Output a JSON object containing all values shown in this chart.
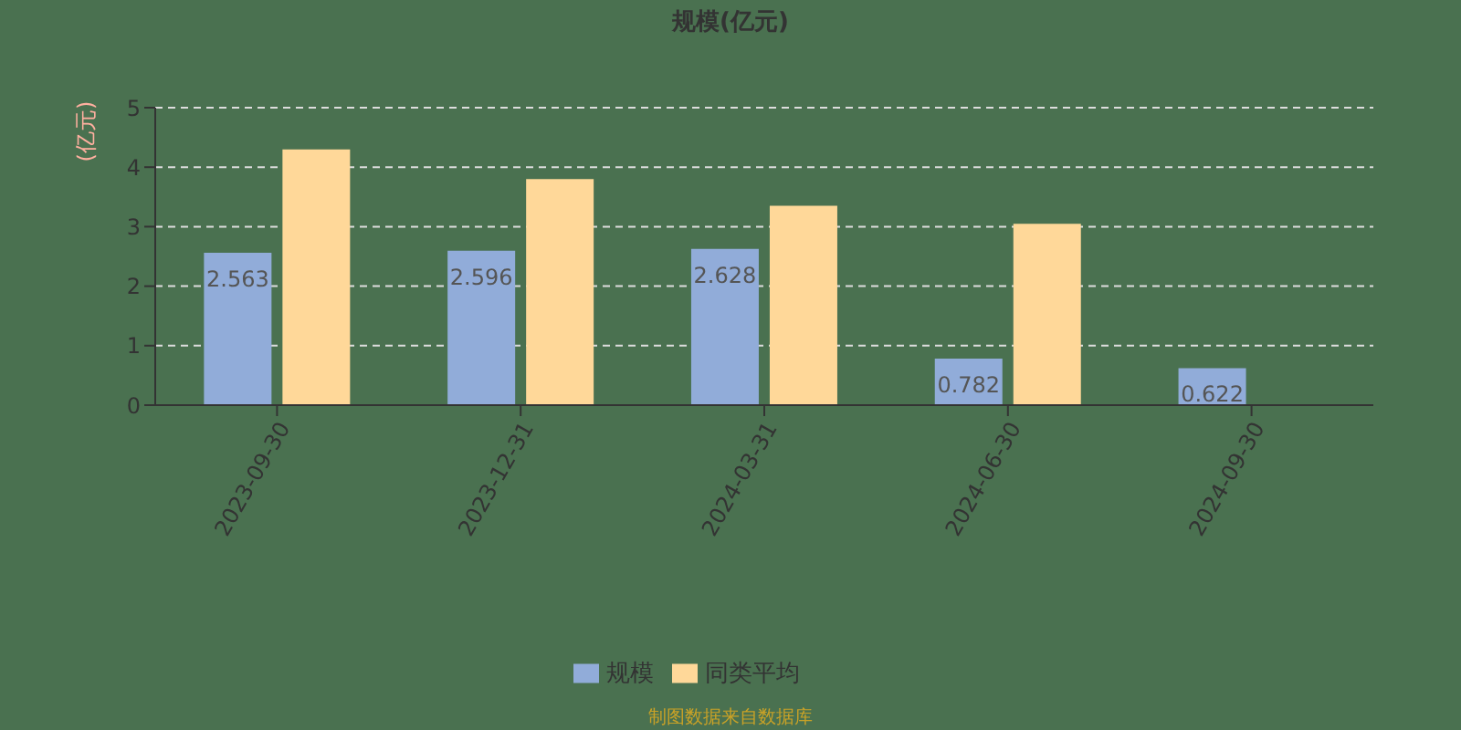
{
  "chart_data": {
    "type": "bar",
    "title": "规模(亿元)",
    "ylabel": "(亿元)",
    "categories": [
      "2023-09-30",
      "2023-12-31",
      "2024-03-31",
      "2024-06-30",
      "2024-09-30"
    ],
    "series": [
      {
        "name": "规模",
        "color": "#91acd9",
        "values": [
          2.563,
          2.596,
          2.628,
          0.782,
          0.622
        ],
        "value_labels": [
          "2.563",
          "2.596",
          "2.628",
          "0.782",
          "0.622"
        ]
      },
      {
        "name": "同类平均",
        "color": "#ffd899",
        "values": [
          4.3,
          3.8,
          3.35,
          3.05,
          null
        ]
      }
    ],
    "ylim": [
      0,
      5
    ],
    "yticks": [
      0,
      1,
      2,
      3,
      4,
      5
    ],
    "grid": "y",
    "legend": "bottom",
    "annotations": [
      "制图数据来自数据库"
    ]
  }
}
